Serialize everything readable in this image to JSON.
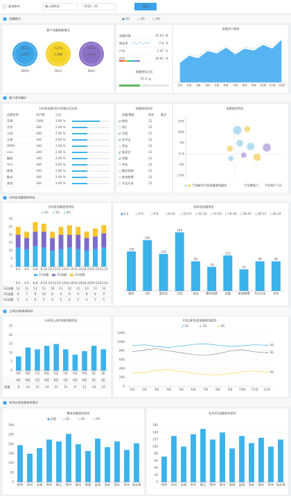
{
  "filter": {
    "label": "查询条件",
    "placeholder": "输入地市名",
    "date": "2016 - 01",
    "button": "查询"
  },
  "sections": [
    "流量概况",
    "客户流向偏好",
    "分时段流量使用特征",
    "上网区域/地域特征",
    "地市区域流量使用情况"
  ],
  "overview": {
    "title": "客户流量概要情况",
    "circles": [
      {
        "percent": "46 %",
        "value": "3,000",
        "name": "ARPU",
        "color": "#3ba4e6"
      },
      {
        "percent": "7.8 %",
        "value": "3,388",
        "name": "DOU",
        "color": "#f5d325"
      },
      {
        "percent": "40 %",
        "value": "2,469",
        "name": "MOU",
        "color": "#8b6fc6"
      }
    ]
  },
  "metrics": {
    "radios": [
      "2G",
      "3G",
      "4G"
    ],
    "rows": [
      {
        "label": "流量均值",
        "value": "45.03",
        "unit": "M"
      },
      {
        "label": "增长率",
        "value": "7.8",
        "unit": "%"
      },
      {
        "label": "户均",
        "value": "2.47",
        "unit": "G"
      },
      {
        "label": "环比",
        "value": "18.95",
        "unit": "%"
      }
    ],
    "footer": {
      "label": "流量使用占比",
      "value": 41.4,
      "unit": "%"
    }
  },
  "terminal_table": {
    "title": "分时段流量/用户终端占比分析",
    "headers": [
      "品牌名称",
      "用户数",
      "占比"
    ],
    "rows": [
      [
        "苹果",
        "1300",
        "3.00 %"
      ],
      [
        "华为",
        "340",
        "2.00 %"
      ],
      [
        "小米",
        "340",
        "2.00 %"
      ],
      [
        "三星",
        "340",
        "2.00 %"
      ],
      [
        "OPPO",
        "340",
        "2.00 %"
      ],
      [
        "vivo",
        "340",
        "2.00 %"
      ],
      [
        "魅族",
        "340",
        "2.00 %"
      ],
      [
        "中兴",
        "340",
        "2.00 %"
      ],
      [
        "联想",
        "340",
        "2.00 %"
      ],
      [
        "酷派",
        "340",
        "2.00 %"
      ],
      [
        "其他",
        "340",
        "2.00 %"
      ]
    ]
  },
  "rank_list": {
    "title": "流量使用排名",
    "headers": [
      "流量/模板",
      "排名",
      "备注"
    ],
    "rows": [
      {
        "name": "微信",
        "rank": "12",
        "checked": true
      },
      {
        "name": "QQ",
        "rank": "15",
        "checked": false
      },
      {
        "name": "百度",
        "rank": "12",
        "checked": true
      },
      {
        "name": "支付宝",
        "rank": "13",
        "checked": true
      },
      {
        "name": "淘宝",
        "rank": "14",
        "checked": false
      },
      {
        "name": "爱奇艺",
        "rank": "15",
        "checked": true
      },
      {
        "name": "优酷",
        "rank": "12",
        "checked": true
      },
      {
        "name": "京东",
        "rank": "14",
        "checked": false
      },
      {
        "name": "腾讯视频",
        "rank": "12",
        "checked": false
      },
      {
        "name": "新浪微博",
        "rank": "13",
        "checked": false
      },
      {
        "name": "今日头条",
        "rank": "15",
        "checked": false
      }
    ]
  },
  "chart_data": [
    {
      "type": "line",
      "area": true,
      "title": "流量用户趋势",
      "categories": [
        "1月",
        "2月",
        "3月",
        "4月",
        "5月",
        "6月",
        "7月",
        "8月",
        "9月",
        "10月",
        "11月",
        "12月"
      ],
      "series": [
        {
          "name": "流量",
          "color": "#3aa7f0",
          "values": [
            40,
            55,
            50,
            65,
            60,
            72,
            58,
            70,
            66,
            78,
            70,
            88
          ]
        }
      ],
      "ylim": [
        0,
        100
      ]
    },
    {
      "type": "scatter",
      "title": "流量使用特征",
      "xlim": [
        -10,
        10
      ],
      "ylim": [
        -12,
        18
      ],
      "yticks": [
        {
          "value": 15,
          "label": "15%"
        },
        {
          "value": 10,
          "label": "10%"
        },
        {
          "value": 5,
          "label": "5%"
        },
        {
          "value": 0,
          "label": "0 %"
        },
        {
          "value": -5,
          "label": "-5%"
        },
        {
          "value": -10,
          "label": "-10%"
        }
      ],
      "points": [
        {
          "x": 0.5,
          "y": 11,
          "size": 8,
          "color": "#a8d8f0"
        },
        {
          "x": 2.5,
          "y": 11.5,
          "size": 4,
          "color": "#f7d774"
        },
        {
          "x": 1,
          "y": 5,
          "size": 5,
          "color": "#a8d8f0"
        },
        {
          "x": 3.2,
          "y": 3.5,
          "size": 6,
          "color": "#a8d8f0"
        },
        {
          "x": -1,
          "y": 2.5,
          "size": 4,
          "color": "#f7d774"
        },
        {
          "x": 6.5,
          "y": 3,
          "size": 7,
          "color": "#b9a6e0"
        },
        {
          "x": 1.8,
          "y": -0.5,
          "size": 3,
          "color": "#b9a6e0"
        },
        {
          "x": 4.5,
          "y": -1.5,
          "size": 6,
          "color": "#f7d774"
        },
        {
          "x": -0.8,
          "y": -2,
          "size": 3,
          "color": "#a8d8f0"
        }
      ],
      "legend_text": "气泡越大代表流量使用越多",
      "notes": [
        "平均增幅 5",
        "平均用户 5万"
      ]
    },
    {
      "type": "bar",
      "stacked": true,
      "title": "分时段流量使用特征",
      "filters": [
        "2G",
        "3G",
        "4G"
      ],
      "categories": [
        "0-4",
        "4-6",
        "6-8",
        "8-10",
        "10-12",
        "12-14",
        "14-16",
        "16-18",
        "18-20",
        "20-22",
        "22-24"
      ],
      "series": [
        {
          "name": "2G流量",
          "color": "#3bb2ea",
          "values": [
            12,
            11,
            13,
            12,
            10,
            11,
            12,
            11,
            10,
            11,
            12
          ]
        },
        {
          "name": "3G流量",
          "color": "#7e6bc9",
          "values": [
            8,
            7,
            9,
            10,
            8,
            9,
            8,
            9,
            8,
            8,
            9
          ]
        },
        {
          "name": "4G流量",
          "color": "#f6c42d",
          "values": [
            5,
            4,
            6,
            5,
            4,
            5,
            6,
            5,
            4,
            5,
            5
          ]
        }
      ],
      "ylim": [
        0,
        30
      ],
      "yticks": [
        0,
        5,
        10,
        15,
        20,
        25,
        30
      ],
      "grid": true,
      "legend": "bottom",
      "table": true
    },
    {
      "type": "bar",
      "title": "各时段流量排名",
      "data_labels": true,
      "tabs": [
        "0-4",
        "4-6",
        "6-8",
        "8-10",
        "10-12",
        "12-14",
        "14-16",
        "16-18",
        "18-20",
        "20-22",
        "22-24"
      ],
      "categories": [
        "微信",
        "QQ",
        "爱奇艺",
        "百度",
        "淘宝",
        "腾讯视频",
        "优酷",
        "新浪微博",
        "今日头条",
        "京东"
      ],
      "series": [
        {
          "name": "流量",
          "color": "#3bb2ea",
          "values": [
            128,
            165,
            120,
            190,
            96,
            78,
            115,
            70,
            96,
            96
          ]
        }
      ],
      "ylim": [
        0,
        220
      ]
    },
    {
      "type": "bar",
      "title": "分时段上网/地域流量特征",
      "categories": [
        "A区",
        "B区",
        "C区",
        "D区",
        "E区",
        "F区",
        "G区",
        "H区",
        "I区",
        "J区"
      ],
      "series": [
        {
          "name": "流量",
          "color": "#3bb2ea",
          "values": [
            8,
            13,
            12,
            14,
            15,
            12,
            9,
            11,
            14,
            12
          ]
        }
      ],
      "ylim": [
        0,
        25
      ],
      "yticks": [
        0,
        5,
        10,
        15,
        20,
        25
      ],
      "grid": true,
      "table": true
    },
    {
      "type": "line",
      "title": "XX区域/各类流量使用趋势",
      "legend": "top",
      "categories": [
        "1月",
        "2月",
        "3月",
        "4月",
        "5月",
        "6月",
        "7月",
        "8月",
        "9月",
        "10月",
        "11月",
        "12月"
      ],
      "series": [
        {
          "name": "2G",
          "color": "#3bb2ea",
          "values": [
            920,
            940,
            900,
            880,
            910,
            950,
            960,
            930,
            900,
            920,
            940,
            930
          ]
        },
        {
          "name": "3G",
          "color": "#8c8c8c",
          "values": [
            780,
            820,
            850,
            800,
            760,
            720,
            700,
            740,
            800,
            830,
            780,
            760
          ]
        },
        {
          "name": "4G",
          "color": "#f6d24a",
          "values": [
            300,
            320,
            360,
            380,
            340,
            300,
            270,
            260,
            290,
            330,
            350,
            320
          ]
        }
      ],
      "ylim": [
        0,
        1200
      ],
      "yticks": [
        0,
        200,
        400,
        600,
        800,
        1000,
        1200
      ],
      "grid": true
    },
    {
      "type": "bar",
      "title": "整体流量使用排名",
      "tabs": [
        "全部",
        "2G",
        "3G",
        "4G"
      ],
      "categories": [
        "南京",
        "苏州",
        "无锡",
        "常州",
        "镇江",
        "扬州",
        "泰州",
        "南通",
        "盐城",
        "淮安",
        "宿迁",
        "徐州",
        "连云港"
      ],
      "series": [
        {
          "name": "流量",
          "color": "#3bb2ea",
          "values": [
            195,
            150,
            180,
            225,
            215,
            255,
            200,
            165,
            230,
            185,
            215,
            170,
            205
          ]
        }
      ],
      "ylim": [
        0,
        300
      ],
      "yticks": [
        0,
        50,
        100,
        150,
        200,
        250,
        300
      ],
      "grid": true
    },
    {
      "type": "bar",
      "title": "各市4G流量使用排名",
      "categories": [
        "南京",
        "苏州",
        "无锡",
        "常州",
        "镇江",
        "扬州",
        "泰州",
        "南通",
        "盐城",
        "淮安",
        "宿迁",
        "徐州",
        "连云港"
      ],
      "series": [
        {
          "name": "流量",
          "color": "#3bb2ea",
          "values": [
            72,
            130,
            100,
            135,
            150,
            120,
            140,
            95,
            130,
            110,
            125,
            100,
            120
          ]
        }
      ],
      "ylim": [
        0,
        160
      ],
      "yticks": [
        0,
        20,
        40,
        60,
        80,
        100,
        120,
        140,
        160
      ],
      "grid": true
    }
  ]
}
